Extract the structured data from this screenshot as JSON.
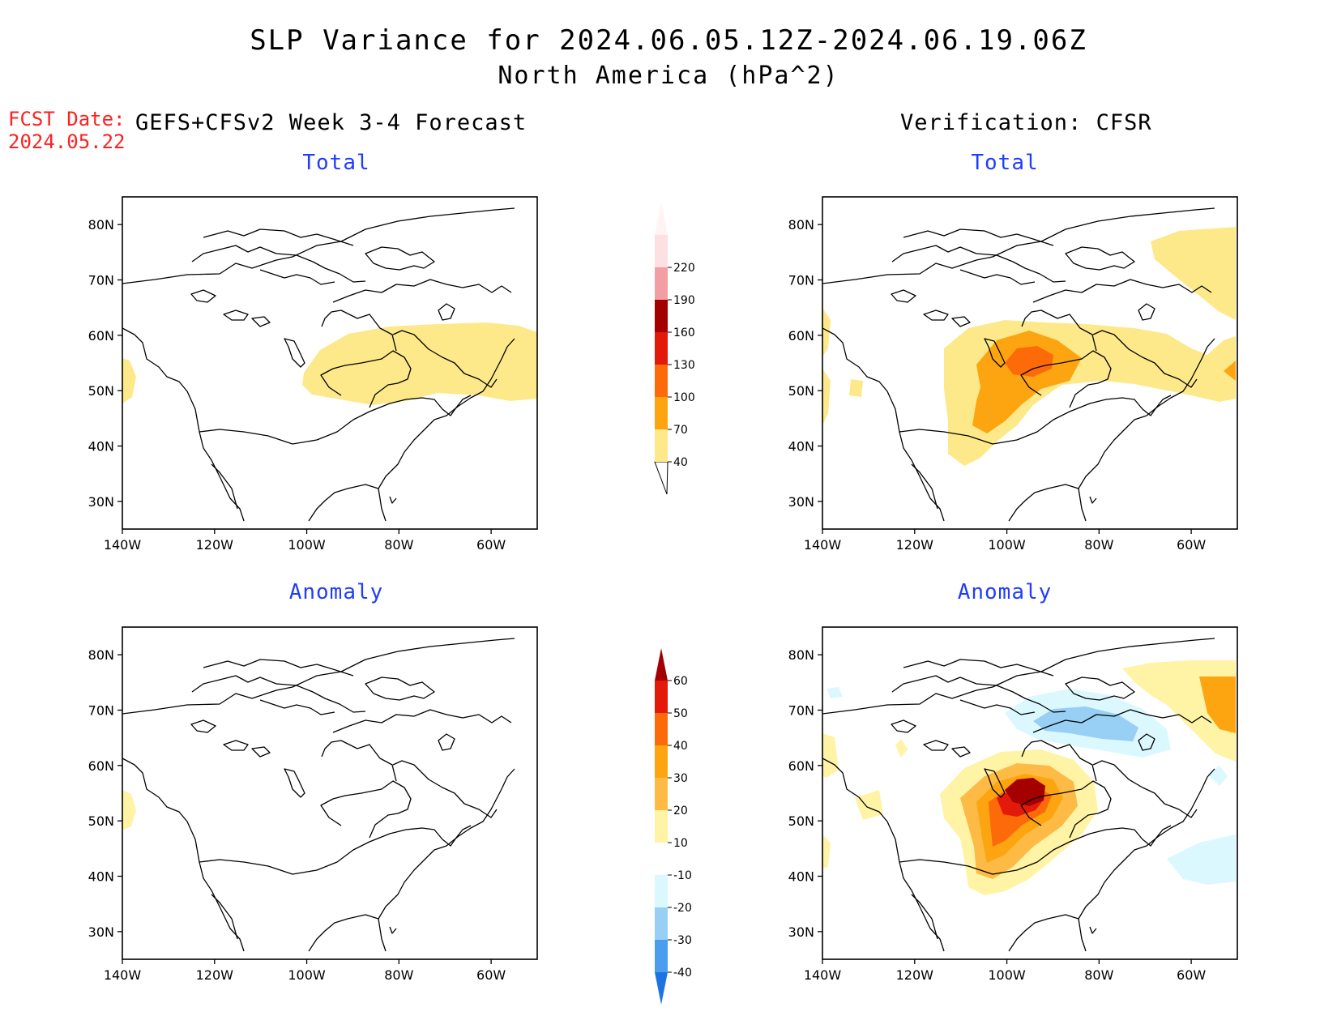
{
  "title": {
    "line1": "SLP Variance for 2024.06.05.12Z-2024.06.19.06Z",
    "line2": "North America (hPa^2)"
  },
  "fcst": {
    "label": "FCST Date:",
    "date": "2024.05.22"
  },
  "left_header": "GEFS+CFSv2 Week 3-4 Forecast",
  "right_header": "Verification: CFSR",
  "panels": {
    "tl": "Total",
    "tr": "Total",
    "bl": "Anomaly",
    "br": "Anomaly"
  },
  "axes": {
    "lat_labels": [
      "80N",
      "70N",
      "60N",
      "50N",
      "40N",
      "30N"
    ],
    "lon_labels": [
      "140W",
      "120W",
      "100W",
      "80W",
      "60W"
    ],
    "lat_values": [
      80,
      70,
      60,
      50,
      40,
      30
    ],
    "lon_values": [
      -140,
      -120,
      -100,
      -80,
      -60
    ],
    "lon_range": [
      -140,
      -50
    ],
    "lat_range": [
      25,
      85
    ]
  },
  "total_colorbar": {
    "labels": [
      "40",
      "70",
      "100",
      "130",
      "160",
      "190",
      "220"
    ],
    "colors": [
      "#fde98a",
      "#fca510",
      "#fd6a0a",
      "#e31a0a",
      "#a50000",
      "#f29ea2",
      "#fde0e2"
    ],
    "extend_low_color": "#ffffff",
    "extend_high_color": "#fff3f3"
  },
  "anomaly_colorbar": {
    "labels": [
      "60",
      "50",
      "40",
      "30",
      "20",
      "10",
      "-10",
      "-20",
      "-30",
      "-40"
    ],
    "colors": [
      "#a50000",
      "#e31a0a",
      "#fd6a0a",
      "#fca510",
      "#fdbb45",
      "#fff3a6",
      "#ffffff",
      "#dcf8ff",
      "#97cff5",
      "#4b9eed",
      "#1c74e3"
    ]
  }
}
